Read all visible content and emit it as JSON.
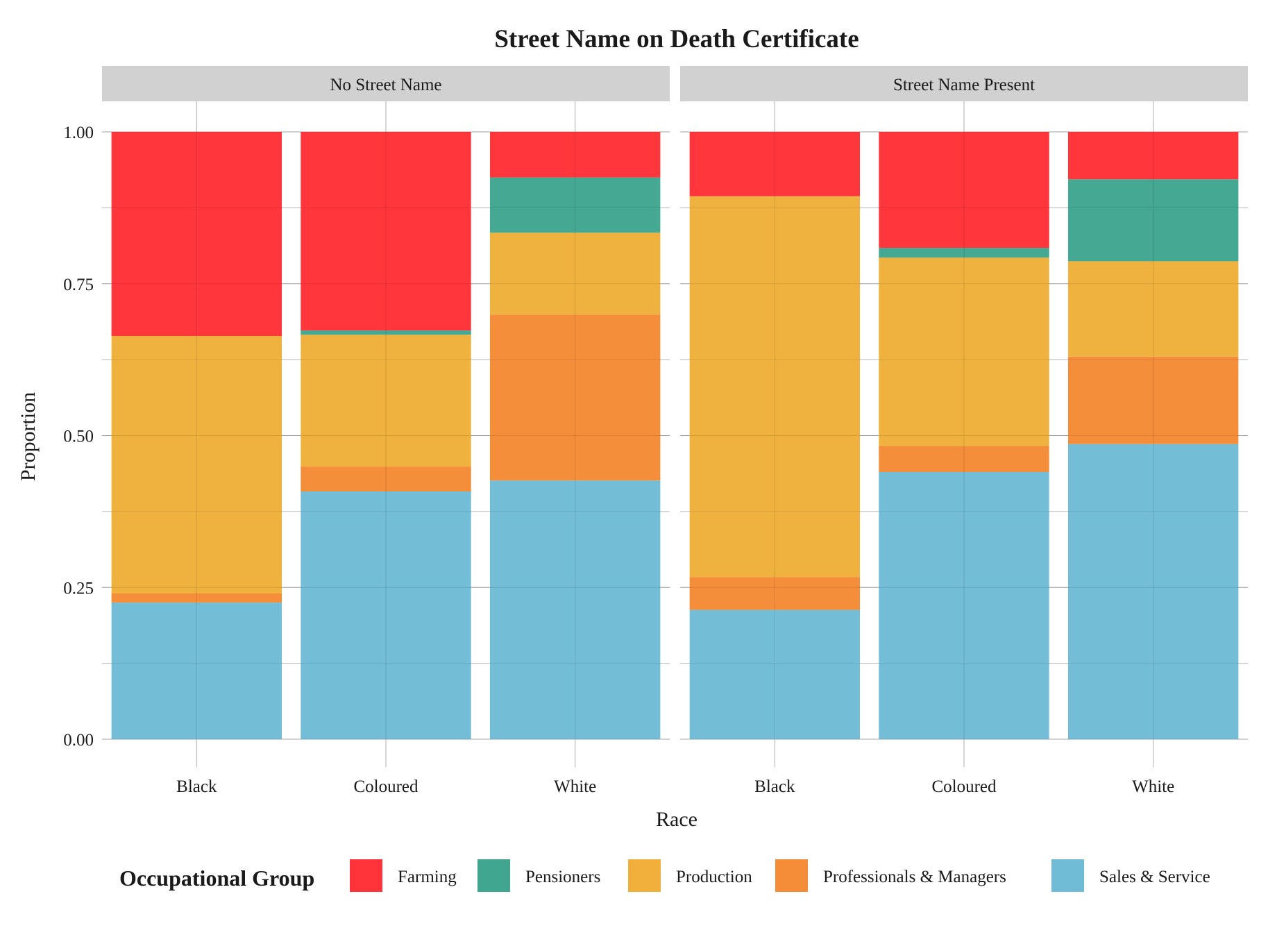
{
  "chart_data": {
    "type": "bar",
    "stacked": true,
    "title": "Street Name on Death Certificate",
    "xlabel": "Race",
    "ylabel": "Proportion",
    "ylim": [
      0,
      1
    ],
    "yticks": [
      "0.00",
      "0.25",
      "0.50",
      "0.75",
      "1.00"
    ],
    "ytick_values": [
      0,
      0.25,
      0.5,
      0.75,
      1
    ],
    "grid": true,
    "legend_position": "bottom",
    "legend": {
      "title": "Occupational Group",
      "entries": [
        {
          "name": "Farming",
          "color": "#ff3339"
        },
        {
          "name": "Pensioners",
          "color": "#40a690"
        },
        {
          "name": "Production",
          "color": "#f0b03b"
        },
        {
          "name": "Professionals & Managers",
          "color": "#f58c37"
        },
        {
          "name": "Sales & Service",
          "color": "#70bcd6"
        }
      ]
    },
    "categories": [
      "Black",
      "Coloured",
      "White"
    ],
    "stack_order": [
      "Sales & Service",
      "Professionals & Managers",
      "Production",
      "Pensioners",
      "Farming"
    ],
    "panels": [
      {
        "name": "No Street Name",
        "series": [
          {
            "name": "Sales & Service",
            "values": [
              0.225,
              0.408,
              0.426
            ]
          },
          {
            "name": "Professionals & Managers",
            "values": [
              0.015,
              0.041,
              0.273
            ]
          },
          {
            "name": "Production",
            "values": [
              0.424,
              0.217,
              0.135
            ]
          },
          {
            "name": "Pensioners",
            "values": [
              0.0,
              0.007,
              0.091
            ]
          },
          {
            "name": "Farming",
            "values": [
              0.336,
              0.327,
              0.075
            ]
          }
        ]
      },
      {
        "name": "Street Name Present",
        "series": [
          {
            "name": "Sales & Service",
            "values": [
              0.213,
              0.44,
              0.486
            ]
          },
          {
            "name": "Professionals & Managers",
            "values": [
              0.054,
              0.043,
              0.144
            ]
          },
          {
            "name": "Production",
            "values": [
              0.627,
              0.31,
              0.157
            ]
          },
          {
            "name": "Pensioners",
            "values": [
              0.0,
              0.016,
              0.135
            ]
          },
          {
            "name": "Farming",
            "values": [
              0.106,
              0.191,
              0.078
            ]
          }
        ]
      }
    ]
  }
}
